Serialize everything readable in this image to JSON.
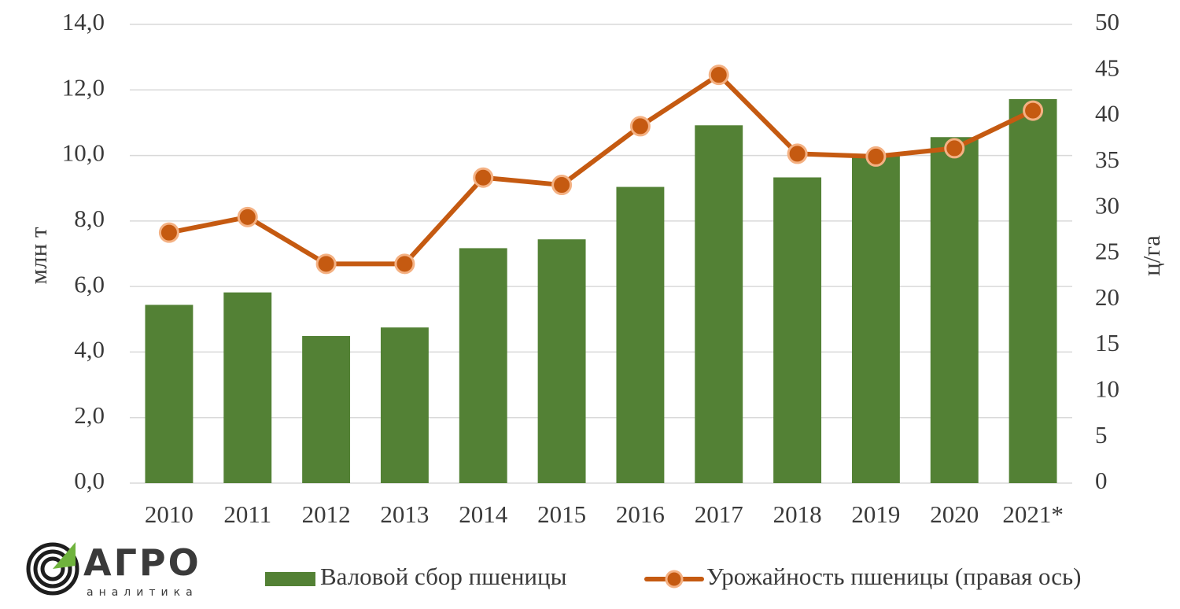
{
  "colors": {
    "bar": "#538135",
    "line": "#C55A11",
    "marker_fill": "#C55A11",
    "marker_stroke": "#F4B183",
    "grid": "#d9d9d9",
    "logo_green": "#6fb33d",
    "logo_dark": "#1e1e1e"
  },
  "logo": {
    "text": "АГРО",
    "subtext": "аналитика"
  },
  "chart_data": {
    "type": "bar",
    "categories": [
      "2010",
      "2011",
      "2012",
      "2013",
      "2014",
      "2015",
      "2016",
      "2017",
      "2018",
      "2019",
      "2020",
      "2021*"
    ],
    "series": [
      {
        "name": "Валовой сбор пшеницы",
        "type": "bar",
        "axis": "left",
        "values": [
          5.44,
          5.82,
          4.49,
          4.75,
          7.17,
          7.44,
          9.04,
          10.92,
          9.33,
          10.01,
          10.56,
          11.72
        ]
      },
      {
        "name": "Урожайность пшеницы (правая ось)",
        "type": "line",
        "axis": "right",
        "values": [
          27.3,
          29.0,
          23.9,
          23.9,
          33.3,
          32.5,
          38.9,
          44.5,
          35.9,
          35.6,
          36.5,
          40.6
        ]
      }
    ],
    "ylabel": "млн т",
    "ylim": [
      0,
      14
    ],
    "yticks": [
      "0,0",
      "2,0",
      "4,0",
      "6,0",
      "8,0",
      "10,0",
      "12,0",
      "14,0"
    ],
    "y2label": "ц/га",
    "y2lim": [
      0,
      50
    ],
    "y2ticks": [
      "0",
      "5",
      "10",
      "15",
      "20",
      "25",
      "30",
      "35",
      "40",
      "45",
      "50"
    ],
    "grid": true,
    "legend_position": "bottom"
  }
}
